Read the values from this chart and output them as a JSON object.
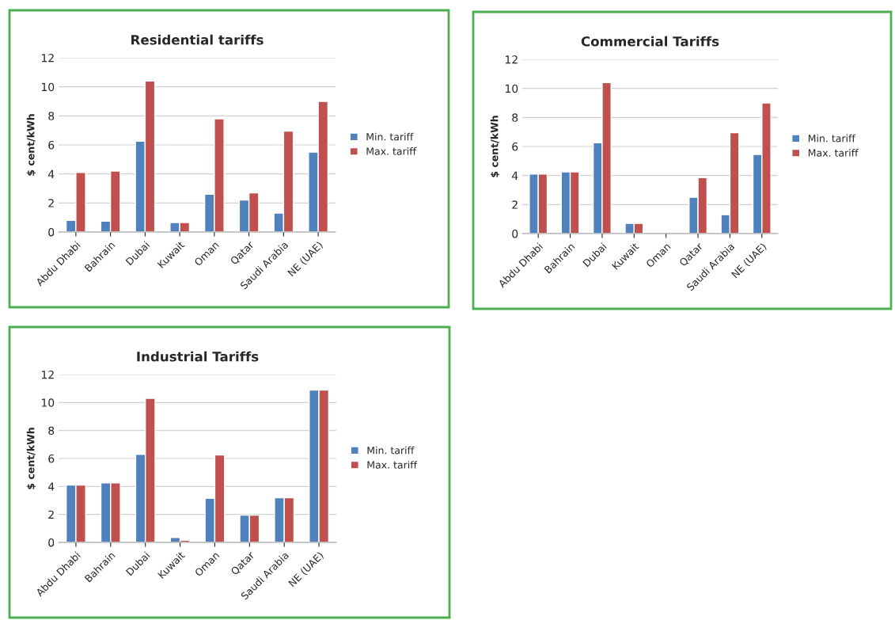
{
  "chart_data": [
    {
      "type": "bar",
      "title": "Residential tariffs",
      "ylabel": "$ cent/kWh",
      "categories": [
        "Abdu Dhabi",
        "Bahrain",
        "Dubai",
        "Kuwait",
        "Oman",
        "Qatar",
        "Saudi Arabia",
        "NE (UAE)"
      ],
      "series": [
        {
          "name": "Min. tariff",
          "color": "#4f81bd",
          "values": [
            0.8,
            0.75,
            6.25,
            0.65,
            2.6,
            2.2,
            1.3,
            5.5
          ]
        },
        {
          "name": "Max. tariff",
          "color": "#c0504d",
          "values": [
            4.1,
            4.2,
            10.4,
            0.65,
            7.8,
            2.7,
            6.95,
            9.0
          ]
        }
      ],
      "ylim": [
        0,
        12
      ],
      "yticks": [
        0,
        2,
        4,
        6,
        8,
        10,
        12
      ],
      "grid": "y",
      "legend": "right"
    },
    {
      "type": "bar",
      "title": "Commercial Tariffs",
      "ylabel": "$ cent/kWh",
      "categories": [
        "Abdu Dhabi",
        "Bahrain",
        "Dubai",
        "Kuwait",
        "Oman",
        "Qatar",
        "Saudi Arabia",
        "NE (UAE)"
      ],
      "series": [
        {
          "name": "Min. tariff",
          "color": "#4f81bd",
          "values": [
            4.1,
            4.25,
            6.25,
            0.7,
            null,
            2.5,
            1.3,
            5.45
          ]
        },
        {
          "name": "Max. tariff",
          "color": "#c0504d",
          "values": [
            4.1,
            4.25,
            10.4,
            0.7,
            null,
            3.85,
            6.95,
            9.0
          ]
        }
      ],
      "ylim": [
        0,
        12
      ],
      "yticks": [
        0,
        2,
        4,
        6,
        8,
        10,
        12
      ],
      "grid": "y",
      "legend": "right"
    },
    {
      "type": "bar",
      "title": "Industrial Tariffs",
      "ylabel": "$ cent/kWh",
      "categories": [
        "Abdu Dhabi",
        "Bahrain",
        "Dubai",
        "Kuwait",
        "Oman",
        "Qatar",
        "Saudi Arabia",
        "NE (UAE)"
      ],
      "series": [
        {
          "name": "Min. tariff",
          "color": "#4f81bd",
          "values": [
            4.1,
            4.25,
            6.3,
            0.35,
            3.15,
            1.95,
            3.2,
            10.9
          ]
        },
        {
          "name": "Max. tariff",
          "color": "#c0504d",
          "values": [
            4.1,
            4.25,
            10.3,
            0.15,
            6.25,
            1.95,
            3.2,
            10.9
          ]
        }
      ],
      "ylim": [
        0,
        12
      ],
      "yticks": [
        0,
        2,
        4,
        6,
        8,
        10,
        12
      ],
      "grid": "y",
      "legend": "right"
    }
  ]
}
